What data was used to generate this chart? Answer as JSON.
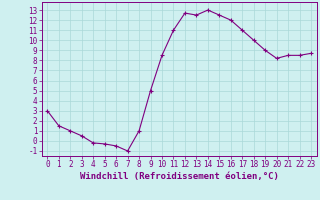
{
  "x": [
    0,
    1,
    2,
    3,
    4,
    5,
    6,
    7,
    8,
    9,
    10,
    11,
    12,
    13,
    14,
    15,
    16,
    17,
    18,
    19,
    20,
    21,
    22,
    23
  ],
  "y": [
    3,
    1.5,
    1,
    0.5,
    -0.2,
    -0.3,
    -0.5,
    -1,
    1,
    5,
    8.5,
    11,
    12.7,
    12.5,
    13,
    12.5,
    12,
    11,
    10,
    9,
    8.2,
    8.5,
    8.5,
    8.7
  ],
  "line_color": "#800080",
  "marker": "+",
  "marker_size": 3,
  "marker_lw": 0.8,
  "line_width": 0.8,
  "bg_color": "#cff0f0",
  "grid_color": "#aad8d8",
  "xlabel": "Windchill (Refroidissement éolien,°C)",
  "ylim": [
    -1.5,
    13.8
  ],
  "xlim": [
    -0.5,
    23.5
  ],
  "yticks": [
    -1,
    0,
    1,
    2,
    3,
    4,
    5,
    6,
    7,
    8,
    9,
    10,
    11,
    12,
    13
  ],
  "xticks": [
    0,
    1,
    2,
    3,
    4,
    5,
    6,
    7,
    8,
    9,
    10,
    11,
    12,
    13,
    14,
    15,
    16,
    17,
    18,
    19,
    20,
    21,
    22,
    23
  ],
  "tick_color": "#800080",
  "label_color": "#800080",
  "axis_color": "#800080",
  "xlabel_fontsize": 6.5,
  "tick_fontsize": 5.5
}
